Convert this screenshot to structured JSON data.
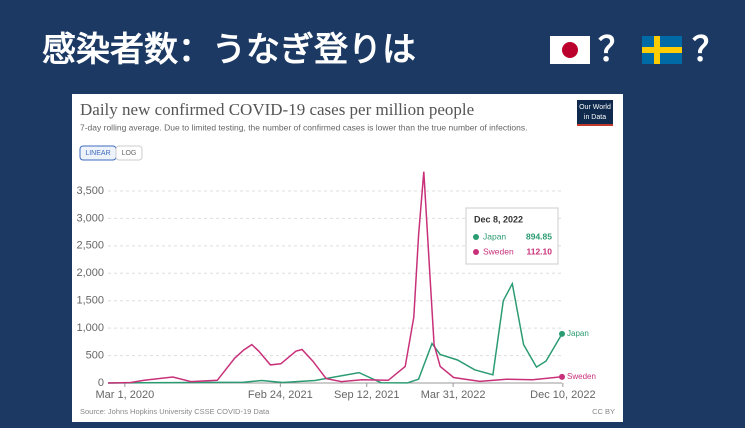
{
  "slide_title": [
    "感染者数：うなぎ登りは",
    "？",
    "？"
  ],
  "chart_data": {
    "type": "line",
    "title": "Daily new confirmed COVID-19 cases per million people",
    "subtitle": "7-day rolling average. Due to limited testing, the number of confirmed cases is lower than the true number of infections.",
    "buttons": [
      "LINEAR",
      "LOG"
    ],
    "logo": [
      "Our World",
      "in Data"
    ],
    "source": "Source: Johns Hopkins University CSSE COVID-19 Data",
    "license": "CC BY",
    "xlim": [
      "2020-01-22",
      "2022-12-08"
    ],
    "xticks": [
      {
        "value": "2020-03-01",
        "label": "Mar 1, 2020"
      },
      {
        "value": "2021-02-24",
        "label": "Feb 24, 2021"
      },
      {
        "value": "2021-09-12",
        "label": "Sep 12, 2021"
      },
      {
        "value": "2022-03-31",
        "label": "Mar 31, 2022"
      },
      {
        "value": "2022-12-10",
        "label": "Dec 10, 2022"
      }
    ],
    "ylim": [
      0,
      3900
    ],
    "yticks": [
      0,
      500,
      {
        "value": 1000,
        "label": "1,000"
      },
      {
        "value": 1500,
        "label": "1,500"
      },
      {
        "value": 2000,
        "label": "2,000"
      },
      {
        "value": 2500,
        "label": "2,500"
      },
      {
        "value": 3000,
        "label": "3,000"
      },
      {
        "value": 3500,
        "label": "3,500"
      }
    ],
    "grid": true,
    "series": [
      {
        "name": "Japan",
        "color": "#2b9b72",
        "x": [
          "2020-01-22",
          "2020-04-15",
          "2020-08-05",
          "2020-12-01",
          "2021-01-12",
          "2021-03-01",
          "2021-05-15",
          "2021-08-25",
          "2021-10-15",
          "2021-12-15",
          "2022-01-10",
          "2022-02-10",
          "2022-03-01",
          "2022-04-10",
          "2022-05-20",
          "2022-07-01",
          "2022-07-25",
          "2022-08-15",
          "2022-09-10",
          "2022-10-10",
          "2022-11-01",
          "2022-12-08"
        ],
        "values": [
          0,
          4,
          9,
          15,
          45,
          10,
          45,
          190,
          5,
          1,
          70,
          720,
          520,
          420,
          240,
          150,
          1500,
          1810,
          700,
          290,
          400,
          894.85
        ]
      },
      {
        "name": "Sweden",
        "color": "#c8317a",
        "x": [
          "2020-01-22",
          "2020-03-15",
          "2020-04-15",
          "2020-06-20",
          "2020-08-01",
          "2020-10-01",
          "2020-11-10",
          "2020-12-01",
          "2020-12-20",
          "2021-01-05",
          "2021-02-01",
          "2021-02-25",
          "2021-04-01",
          "2021-04-15",
          "2021-05-10",
          "2021-06-10",
          "2021-07-15",
          "2021-09-01",
          "2021-11-01",
          "2021-12-10",
          "2021-12-30",
          "2022-01-10",
          "2022-01-22",
          "2022-02-05",
          "2022-02-15",
          "2022-03-01",
          "2022-04-01",
          "2022-06-01",
          "2022-08-01",
          "2022-10-01",
          "2022-12-08"
        ],
        "values": [
          0,
          10,
          50,
          110,
          25,
          50,
          450,
          600,
          700,
          580,
          330,
          350,
          580,
          610,
          400,
          80,
          25,
          60,
          50,
          300,
          1200,
          2700,
          3850,
          2000,
          700,
          300,
          100,
          30,
          70,
          60,
          112.1
        ]
      }
    ],
    "tooltip": {
      "date": "Dec 8, 2022",
      "values": [
        894.85,
        {
          "value": 112.1,
          "label": "112.10"
        }
      ]
    }
  }
}
